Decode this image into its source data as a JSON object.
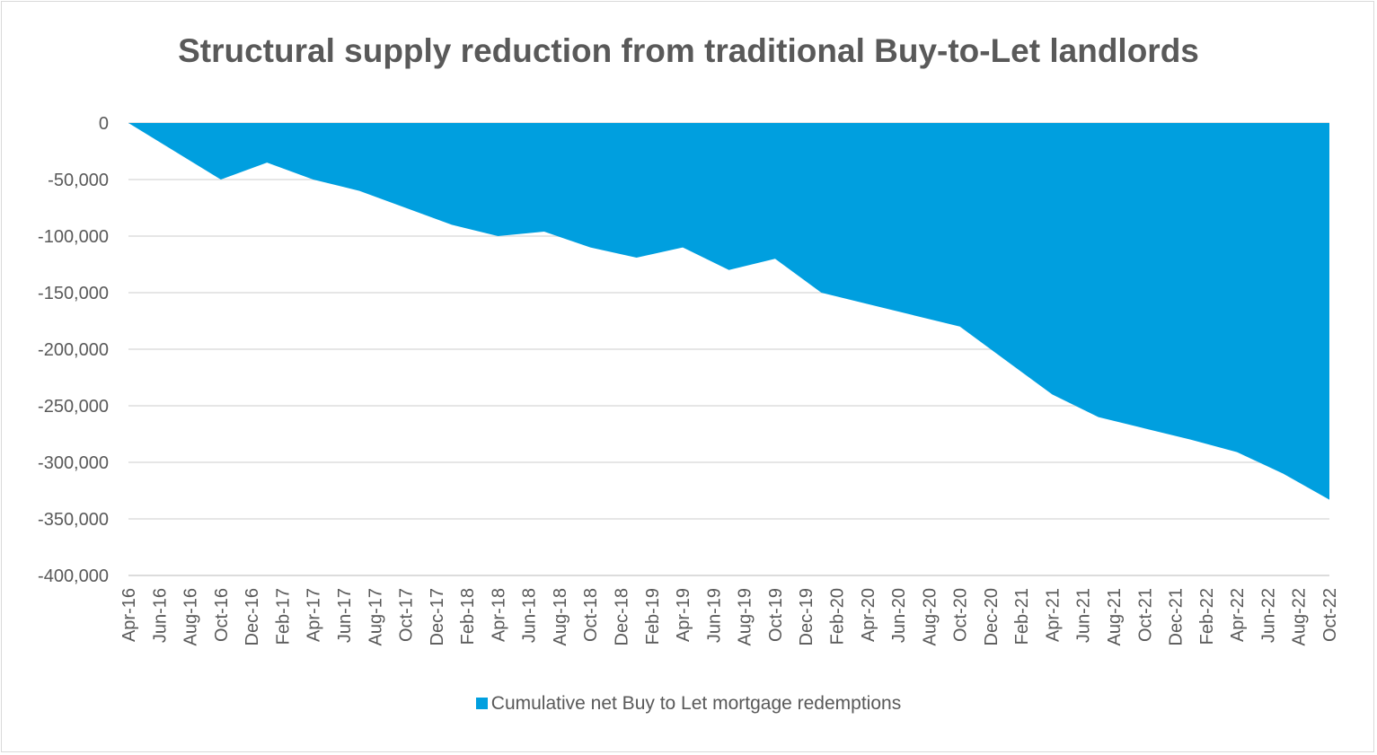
{
  "colors": {
    "area": "#009fdf",
    "grid": "#e6e6e6",
    "text": "#595959"
  },
  "chart_data": {
    "type": "area",
    "title": "Structural supply reduction from traditional Buy-to-Let landlords",
    "xlabel": "",
    "ylabel": "",
    "ylim": [
      -400000,
      0
    ],
    "y_ticks": [
      0,
      -50000,
      -100000,
      -150000,
      -200000,
      -250000,
      -300000,
      -350000,
      -400000
    ],
    "y_tick_labels": [
      "0",
      "-50,000",
      "-100,000",
      "-150,000",
      "-200,000",
      "-250,000",
      "-300,000",
      "-350,000",
      "-400,000"
    ],
    "grid": true,
    "legend_position": "bottom",
    "x_tick_labels": [
      "Apr-16",
      "Jun-16",
      "Aug-16",
      "Oct-16",
      "Dec-16",
      "Feb-17",
      "Apr-17",
      "Jun-17",
      "Aug-17",
      "Oct-17",
      "Dec-17",
      "Feb-18",
      "Apr-18",
      "Jun-18",
      "Aug-18",
      "Oct-18",
      "Dec-18",
      "Feb-19",
      "Apr-19",
      "Jun-19",
      "Aug-19",
      "Oct-19",
      "Dec-19",
      "Feb-20",
      "Apr-20",
      "Jun-20",
      "Aug-20",
      "Oct-20",
      "Dec-20",
      "Feb-21",
      "Apr-21",
      "Jun-21",
      "Aug-21",
      "Oct-21",
      "Dec-21",
      "Feb-22",
      "Apr-22",
      "Jun-22",
      "Aug-22",
      "Oct-22"
    ],
    "series": [
      {
        "name": "Cumulative net Buy to Let mortgage redemptions",
        "x": [
          "Apr-16",
          "Jul-16",
          "Oct-16",
          "Jan-17",
          "Apr-17",
          "Jul-17",
          "Oct-17",
          "Jan-18",
          "Apr-18",
          "Jul-18",
          "Oct-18",
          "Jan-19",
          "Apr-19",
          "Jul-19",
          "Oct-19",
          "Jan-20",
          "Apr-20",
          "Jul-20",
          "Oct-20",
          "Jan-21",
          "Apr-21",
          "Jul-21",
          "Oct-21",
          "Jan-22",
          "Apr-22",
          "Jul-22",
          "Oct-22"
        ],
        "values": [
          0,
          -25000,
          -50000,
          -35000,
          -50000,
          -60000,
          -75000,
          -90000,
          -100000,
          -96000,
          -110000,
          -119000,
          -110000,
          -130000,
          -120000,
          -150000,
          -160000,
          -170000,
          -180000,
          -210000,
          -240000,
          -260000,
          -270000,
          -280000,
          -291000,
          -310000,
          -333000
        ]
      }
    ]
  }
}
